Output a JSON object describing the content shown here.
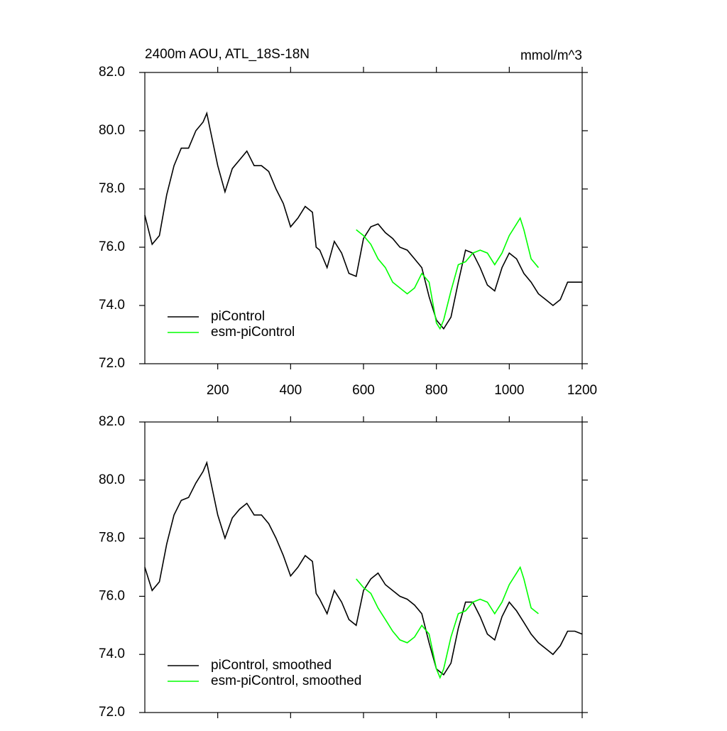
{
  "chart_data": [
    {
      "type": "line",
      "title": "2400m AOU, ATL_18S-18N",
      "subtitle": "mmol/m^3",
      "xlim": [
        0,
        1200
      ],
      "xticks": [
        200,
        400,
        600,
        800,
        1000,
        1200
      ],
      "ylim": [
        72,
        82
      ],
      "yticks": [
        {
          "value": 72,
          "label": "72.0"
        },
        {
          "value": 74,
          "label": "74.0"
        },
        {
          "value": 76,
          "label": "76.0"
        },
        {
          "value": 78,
          "label": "78.0"
        },
        {
          "value": 80,
          "label": "80.0"
        },
        {
          "value": 82,
          "label": "82.0"
        }
      ],
      "legend": "lower left",
      "series": [
        {
          "name": "piControl",
          "color": "#000000",
          "x": [
            0,
            10,
            20,
            40,
            60,
            80,
            100,
            120,
            140,
            160,
            170,
            180,
            200,
            220,
            240,
            260,
            280,
            300,
            320,
            340,
            360,
            380,
            400,
            420,
            440,
            460,
            470,
            480,
            500,
            520,
            540,
            560,
            580,
            600,
            620,
            640,
            660,
            680,
            700,
            720,
            740,
            760,
            780,
            800,
            820,
            840,
            860,
            880,
            900,
            920,
            940,
            960,
            980,
            1000,
            1020,
            1040,
            1060,
            1080,
            1100,
            1120,
            1140,
            1160,
            1180,
            1200
          ],
          "values": [
            77.1,
            76.6,
            76.1,
            76.4,
            77.8,
            78.8,
            79.4,
            79.4,
            80.0,
            80.3,
            80.6,
            80.0,
            78.8,
            77.9,
            78.7,
            79.0,
            79.3,
            78.8,
            78.8,
            78.6,
            78.0,
            77.5,
            76.7,
            77.0,
            77.4,
            77.2,
            76.0,
            75.9,
            75.3,
            76.2,
            75.8,
            75.1,
            75.0,
            76.3,
            76.7,
            76.8,
            76.5,
            76.3,
            76.0,
            75.9,
            75.6,
            75.3,
            74.3,
            73.5,
            73.2,
            73.6,
            74.8,
            75.9,
            75.8,
            75.3,
            74.7,
            74.5,
            75.3,
            75.8,
            75.6,
            75.1,
            74.8,
            74.4,
            74.2,
            74.0,
            74.2,
            74.8,
            74.8,
            74.8
          ]
        },
        {
          "name": "esm-piControl",
          "color": "#00ff00",
          "x": [
            580,
            600,
            620,
            640,
            660,
            680,
            700,
            720,
            740,
            760,
            780,
            800,
            810,
            820,
            840,
            860,
            880,
            900,
            920,
            940,
            960,
            980,
            1000,
            1020,
            1030,
            1040,
            1060,
            1080
          ],
          "values": [
            76.6,
            76.4,
            76.1,
            75.6,
            75.3,
            74.8,
            74.6,
            74.4,
            74.6,
            75.1,
            74.8,
            73.4,
            73.2,
            73.5,
            74.5,
            75.4,
            75.5,
            75.8,
            75.9,
            75.8,
            75.4,
            75.8,
            76.4,
            76.8,
            77.0,
            76.6,
            75.6,
            75.3
          ]
        }
      ]
    },
    {
      "type": "line",
      "xlim": [
        0,
        1200
      ],
      "xticks": [
        200,
        400,
        600,
        800,
        1000,
        1200
      ],
      "ylim": [
        72,
        82
      ],
      "yticks": [
        {
          "value": 72,
          "label": "72.0"
        },
        {
          "value": 74,
          "label": "74.0"
        },
        {
          "value": 76,
          "label": "76.0"
        },
        {
          "value": 78,
          "label": "78.0"
        },
        {
          "value": 80,
          "label": "80.0"
        },
        {
          "value": 82,
          "label": "82.0"
        }
      ],
      "legend": "lower left",
      "series": [
        {
          "name": "piControl, smoothed",
          "color": "#000000",
          "x": [
            0,
            10,
            20,
            40,
            60,
            80,
            100,
            120,
            140,
            160,
            170,
            180,
            200,
            220,
            240,
            260,
            280,
            300,
            320,
            340,
            360,
            380,
            400,
            420,
            440,
            460,
            470,
            480,
            500,
            520,
            540,
            560,
            580,
            600,
            620,
            640,
            660,
            680,
            700,
            720,
            740,
            760,
            780,
            800,
            820,
            840,
            860,
            880,
            900,
            920,
            940,
            960,
            980,
            1000,
            1020,
            1040,
            1060,
            1080,
            1100,
            1120,
            1140,
            1160,
            1180,
            1200
          ],
          "values": [
            77.0,
            76.6,
            76.2,
            76.5,
            77.8,
            78.8,
            79.3,
            79.4,
            79.9,
            80.3,
            80.6,
            80.0,
            78.8,
            78.0,
            78.7,
            79.0,
            79.2,
            78.8,
            78.8,
            78.5,
            78.0,
            77.4,
            76.7,
            77.0,
            77.4,
            77.2,
            76.1,
            75.9,
            75.4,
            76.2,
            75.8,
            75.2,
            75.0,
            76.2,
            76.6,
            76.8,
            76.4,
            76.2,
            76.0,
            75.9,
            75.7,
            75.4,
            74.4,
            73.5,
            73.3,
            73.7,
            74.9,
            75.8,
            75.8,
            75.3,
            74.7,
            74.5,
            75.3,
            75.8,
            75.5,
            75.1,
            74.7,
            74.4,
            74.2,
            74.0,
            74.3,
            74.8,
            74.8,
            74.7
          ]
        },
        {
          "name": "esm-piControl, smoothed",
          "color": "#00ff00",
          "x": [
            580,
            600,
            620,
            640,
            660,
            680,
            700,
            720,
            740,
            760,
            780,
            800,
            810,
            820,
            840,
            860,
            880,
            900,
            920,
            940,
            960,
            980,
            1000,
            1020,
            1030,
            1040,
            1060,
            1080
          ],
          "values": [
            76.6,
            76.3,
            76.1,
            75.6,
            75.2,
            74.8,
            74.5,
            74.4,
            74.6,
            75.0,
            74.7,
            73.5,
            73.2,
            73.5,
            74.6,
            75.4,
            75.5,
            75.8,
            75.9,
            75.8,
            75.4,
            75.8,
            76.4,
            76.8,
            77.0,
            76.6,
            75.6,
            75.4
          ]
        }
      ]
    }
  ]
}
